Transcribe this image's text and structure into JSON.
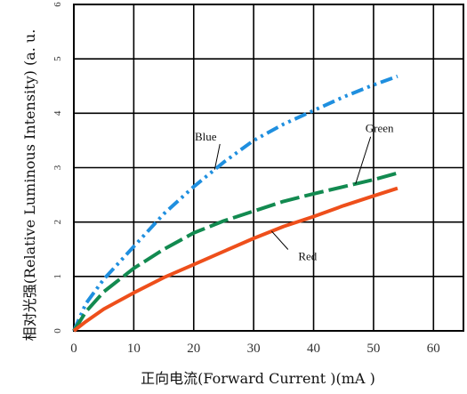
{
  "chart_data": {
    "type": "line",
    "title": "",
    "xlabel": "正向电流(Forward  Current )(mA )",
    "ylabel": "相对光强(Relative Luminous  Intensity) (a. u.",
    "xlim": [
      0,
      65
    ],
    "ylim": [
      0,
      6
    ],
    "xticks": [
      "0",
      "10",
      "20",
      "30",
      "40",
      "50",
      "60"
    ],
    "yticks": [
      "0",
      "1",
      "2",
      "3",
      "4",
      "5",
      "6"
    ],
    "grid": true,
    "legend": "none",
    "series": [
      {
        "name": "Blue",
        "color": "#1f8fdf",
        "dash": "dash-dot-dot",
        "x": [
          0,
          2,
          5,
          10,
          15,
          20,
          25,
          30,
          35,
          40,
          45,
          50,
          54
        ],
        "y": [
          0,
          0.5,
          0.95,
          1.55,
          2.15,
          2.65,
          3.1,
          3.5,
          3.8,
          4.05,
          4.3,
          4.52,
          4.68
        ]
      },
      {
        "name": "Green",
        "color": "#128a50",
        "dash": "long-dash",
        "x": [
          0,
          2,
          5,
          10,
          15,
          20,
          25,
          30,
          35,
          40,
          45,
          50,
          54
        ],
        "y": [
          0,
          0.35,
          0.72,
          1.15,
          1.5,
          1.8,
          2.02,
          2.2,
          2.38,
          2.52,
          2.65,
          2.78,
          2.9
        ]
      },
      {
        "name": "Red",
        "color": "#ee4f1b",
        "dash": "solid",
        "x": [
          0,
          2,
          5,
          10,
          15,
          20,
          25,
          30,
          35,
          40,
          45,
          50,
          54
        ],
        "y": [
          0,
          0.17,
          0.4,
          0.7,
          0.98,
          1.22,
          1.46,
          1.7,
          1.92,
          2.1,
          2.3,
          2.48,
          2.62
        ]
      }
    ],
    "annotations": [
      {
        "text": "Blue",
        "points_to": "Blue",
        "at": [
          22,
          3.5
        ]
      },
      {
        "text": "Green",
        "points_to": "Green",
        "at": [
          51,
          3.65
        ]
      },
      {
        "text": "Red",
        "points_to": "Red",
        "at": [
          39,
          1.3
        ]
      }
    ]
  }
}
